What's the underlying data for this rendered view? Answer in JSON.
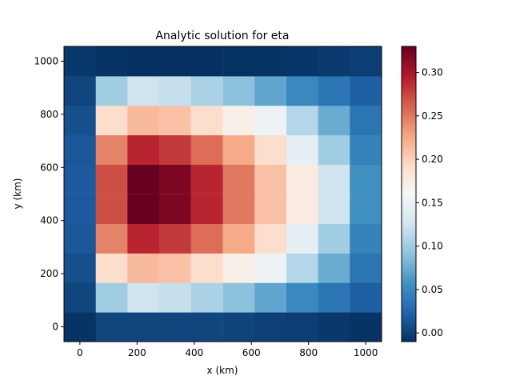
{
  "chart_data": {
    "type": "heatmap",
    "title": "Analytic solution for eta",
    "xlabel": "x (km)",
    "ylabel": "y (km)",
    "x": [
      0,
      111,
      222,
      333,
      444,
      556,
      667,
      778,
      889,
      1000
    ],
    "y": [
      0,
      111,
      222,
      333,
      444,
      556,
      667,
      778,
      889,
      1000
    ],
    "x_ticks": [
      0,
      200,
      400,
      600,
      800,
      1000
    ],
    "y_ticks": [
      0,
      200,
      400,
      600,
      800,
      1000
    ],
    "xlim": [
      -55.6,
      1055.6
    ],
    "ylim": [
      -55.6,
      1055.6
    ],
    "colormap": "RdBu_r",
    "clim": [
      -0.01,
      0.33
    ],
    "colorbar_ticks": [
      "0.00",
      "0.05",
      "0.10",
      "0.15",
      "0.20",
      "0.25",
      "0.30"
    ],
    "colorbar_tick_values": [
      0.0,
      0.05,
      0.1,
      0.15,
      0.2,
      0.25,
      0.3
    ],
    "values": [
      [
        -0.008,
        0.003,
        0.003,
        0.003,
        0.003,
        0.002,
        0.0,
        -0.002,
        -0.005,
        -0.008
      ],
      [
        0.003,
        0.1,
        0.125,
        0.12,
        0.105,
        0.09,
        0.07,
        0.05,
        0.035,
        0.02
      ],
      [
        0.01,
        0.19,
        0.215,
        0.21,
        0.19,
        0.17,
        0.15,
        0.11,
        0.075,
        0.035
      ],
      [
        0.015,
        0.245,
        0.29,
        0.28,
        0.255,
        0.225,
        0.19,
        0.145,
        0.1,
        0.045
      ],
      [
        0.017,
        0.27,
        0.33,
        0.32,
        0.29,
        0.25,
        0.21,
        0.175,
        0.125,
        0.055
      ],
      [
        0.017,
        0.27,
        0.33,
        0.32,
        0.29,
        0.25,
        0.21,
        0.175,
        0.125,
        0.055
      ],
      [
        0.015,
        0.245,
        0.29,
        0.28,
        0.255,
        0.225,
        0.19,
        0.145,
        0.1,
        0.045
      ],
      [
        0.01,
        0.19,
        0.215,
        0.21,
        0.19,
        0.17,
        0.15,
        0.11,
        0.075,
        0.035
      ],
      [
        0.003,
        0.1,
        0.125,
        0.12,
        0.105,
        0.09,
        0.07,
        0.05,
        0.035,
        0.02
      ],
      [
        -0.005,
        -0.008,
        -0.01,
        -0.01,
        -0.01,
        -0.009,
        -0.008,
        -0.006,
        -0.004,
        -0.002
      ]
    ]
  }
}
